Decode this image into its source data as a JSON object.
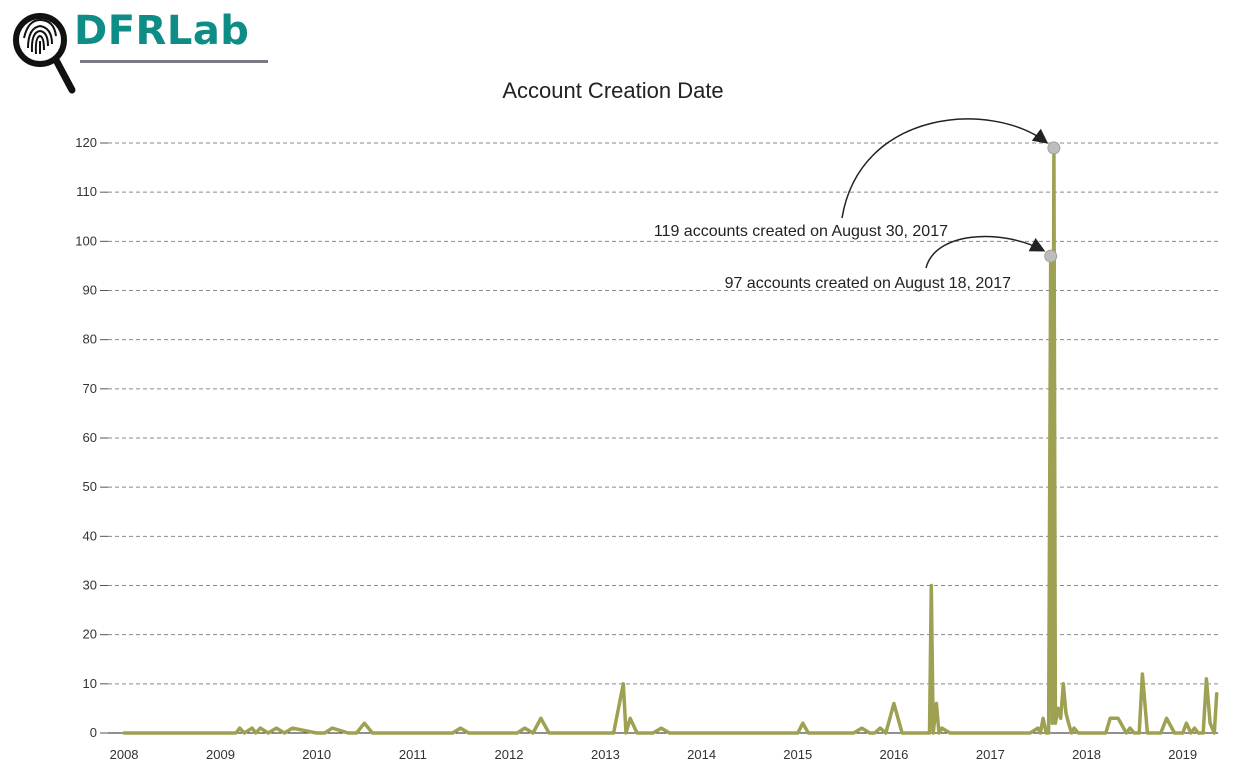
{
  "brand": {
    "logo_text": "DFRLab",
    "logo_icon": "fingerprint-magnifier-icon",
    "logo_color": "#0e8c86"
  },
  "chart_data": {
    "type": "line",
    "title": "Account Creation Date",
    "xlabel": "",
    "ylabel": "",
    "ylim": [
      0,
      120
    ],
    "yticks": [
      0,
      10,
      20,
      30,
      40,
      50,
      60,
      70,
      80,
      90,
      100,
      110,
      120
    ],
    "xlim": [
      "2007-11-01",
      "2019-05-15"
    ],
    "xtick_labels": [
      "2008",
      "2009",
      "2010",
      "2011",
      "2012",
      "2013",
      "2014",
      "2015",
      "2016",
      "2017",
      "2018",
      "2019"
    ],
    "grid": "horizontal dashed",
    "line_color": "#9ea052",
    "series": [
      {
        "x": [
          "2008-01-01",
          "2009-03-01",
          "2009-03-15",
          "2009-04-01",
          "2009-05-01",
          "2009-05-15",
          "2009-06-01",
          "2009-07-01",
          "2009-08-01",
          "2009-09-01",
          "2009-10-01",
          "2010-01-01",
          "2010-02-01",
          "2010-03-01",
          "2010-05-01",
          "2010-06-01",
          "2010-07-01",
          "2010-08-01",
          "2010-09-01",
          "2011-01-01",
          "2011-06-01",
          "2011-07-01",
          "2011-08-01",
          "2011-09-01",
          "2012-01-01",
          "2012-02-01",
          "2012-03-01",
          "2012-04-01",
          "2012-05-01",
          "2012-06-01",
          "2012-07-01",
          "2012-09-01",
          "2012-10-01",
          "2012-12-01",
          "2013-01-01",
          "2013-02-01",
          "2013-03-10",
          "2013-03-20",
          "2013-04-05",
          "2013-05-01",
          "2013-05-15",
          "2013-06-01",
          "2013-07-01",
          "2013-08-01",
          "2013-09-01",
          "2014-01-01",
          "2015-01-01",
          "2015-01-20",
          "2015-02-10",
          "2015-05-01",
          "2015-07-01",
          "2015-08-01",
          "2015-09-01",
          "2015-10-01",
          "2015-10-20",
          "2015-11-10",
          "2015-12-01",
          "2016-01-01",
          "2016-02-01",
          "2016-03-01",
          "2016-05-15",
          "2016-05-22",
          "2016-05-29",
          "2016-06-10",
          "2016-06-20",
          "2016-07-01",
          "2016-08-01",
          "2016-09-01",
          "2017-01-01",
          "2017-05-01",
          "2017-06-01",
          "2017-07-01",
          "2017-07-10",
          "2017-07-20",
          "2017-08-01",
          "2017-08-10",
          "2017-08-18",
          "2017-08-24",
          "2017-08-30",
          "2017-09-05",
          "2017-09-15",
          "2017-09-25",
          "2017-10-05",
          "2017-10-15",
          "2017-10-25",
          "2017-11-05",
          "2017-11-15",
          "2017-12-01",
          "2017-12-15",
          "2018-01-01",
          "2018-02-01",
          "2018-03-01",
          "2018-03-15",
          "2018-04-01",
          "2018-05-01",
          "2018-06-01",
          "2018-06-15",
          "2018-07-01",
          "2018-07-20",
          "2018-08-01",
          "2018-08-20",
          "2018-09-10",
          "2018-09-25",
          "2018-10-10",
          "2018-11-01",
          "2018-12-01",
          "2019-01-01",
          "2019-01-15",
          "2019-02-01",
          "2019-02-15",
          "2019-03-01",
          "2019-03-20",
          "2019-04-01",
          "2019-04-15",
          "2019-05-01",
          "2019-05-10"
        ],
        "y": [
          0,
          0,
          1,
          0,
          1,
          0,
          1,
          0,
          1,
          0,
          1,
          0,
          0,
          1,
          0,
          0,
          2,
          0,
          0,
          0,
          0,
          1,
          0,
          0,
          0,
          0,
          1,
          0,
          3,
          0,
          0,
          0,
          0,
          0,
          0,
          0,
          10,
          0,
          3,
          0,
          0,
          0,
          0,
          1,
          0,
          0,
          0,
          2,
          0,
          0,
          0,
          0,
          1,
          0,
          0,
          1,
          0,
          6,
          0,
          0,
          0,
          30,
          0,
          6,
          0,
          1,
          0,
          0,
          0,
          0,
          0,
          1,
          0,
          3,
          0,
          0,
          97,
          2,
          119,
          2,
          5,
          3,
          10,
          4,
          2,
          0,
          1,
          0,
          0,
          0,
          0,
          0,
          0,
          3,
          3,
          0,
          1,
          0,
          0,
          12,
          0,
          0,
          0,
          0,
          3,
          0,
          0,
          2,
          0,
          1,
          0,
          0,
          11,
          2,
          0,
          8
        ]
      }
    ],
    "annotations": [
      {
        "text": "119 accounts created on August 30, 2017",
        "x": "2017-08-30",
        "y": 119
      },
      {
        "text": "97 accounts created on August 18, 2017",
        "x": "2017-08-18",
        "y": 97
      }
    ]
  }
}
